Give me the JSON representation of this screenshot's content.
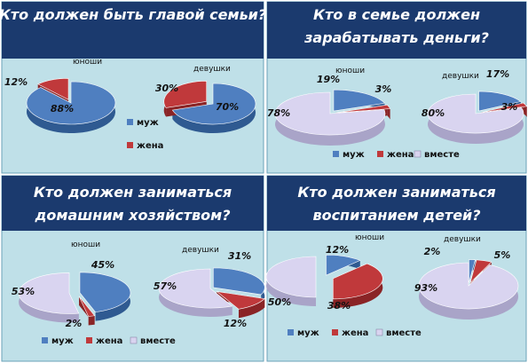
{
  "colors": {
    "title_bg": "#1b3a6e",
    "panel_bg": "#bfe0e8",
    "series": [
      "#4f7fc0",
      "#c0393b",
      "#d9d4f0"
    ],
    "series_dark": [
      "#2f5a91",
      "#8a2426",
      "#a9a4c8"
    ]
  },
  "chart_data": [
    {
      "type": "pie",
      "title": "Кто должен быть главой семьи?",
      "legend": [
        "муж",
        "жена"
      ],
      "legend_position": "center",
      "pies": [
        {
          "name": "юноши",
          "values": [
            88,
            12
          ],
          "labels": [
            "88%",
            "12%"
          ]
        },
        {
          "name": "девушки",
          "values": [
            70,
            30
          ],
          "labels": [
            "70%",
            "30%"
          ]
        }
      ]
    },
    {
      "type": "pie",
      "title": "Кто в семье должен зарабатывать деньги?",
      "legend": [
        "муж",
        "жена",
        "вместе"
      ],
      "legend_position": "bottom",
      "pies": [
        {
          "name": "юноши",
          "values": [
            19,
            3,
            78
          ],
          "labels": [
            "19%",
            "3%",
            "78%"
          ]
        },
        {
          "name": "девушки",
          "values": [
            17,
            3,
            80
          ],
          "labels": [
            "17%",
            "3%",
            "80%"
          ]
        }
      ]
    },
    {
      "type": "pie",
      "title": "Кто должен заниматься домашним хозяйством?",
      "legend": [
        "муж",
        "жена",
        "вместе"
      ],
      "legend_position": "bottom",
      "pies": [
        {
          "name": "юноши",
          "values": [
            45,
            2,
            53
          ],
          "labels": [
            "45%",
            "2%",
            "53%"
          ]
        },
        {
          "name": "девушки",
          "values": [
            31,
            12,
            57
          ],
          "labels": [
            "31%",
            "12%",
            "57%"
          ]
        }
      ]
    },
    {
      "type": "pie",
      "title": "Кто должен заниматься воспитанием детей?",
      "legend": [
        "муж",
        "жена",
        "вместе"
      ],
      "legend_position": "bottom",
      "pies": [
        {
          "name": "юноши",
          "values": [
            12,
            38,
            50
          ],
          "labels": [
            "12%",
            "38%",
            "50%"
          ]
        },
        {
          "name": "девушки",
          "values": [
            2,
            5,
            93
          ],
          "labels": [
            "2%",
            "5%",
            "93%"
          ]
        }
      ]
    }
  ]
}
